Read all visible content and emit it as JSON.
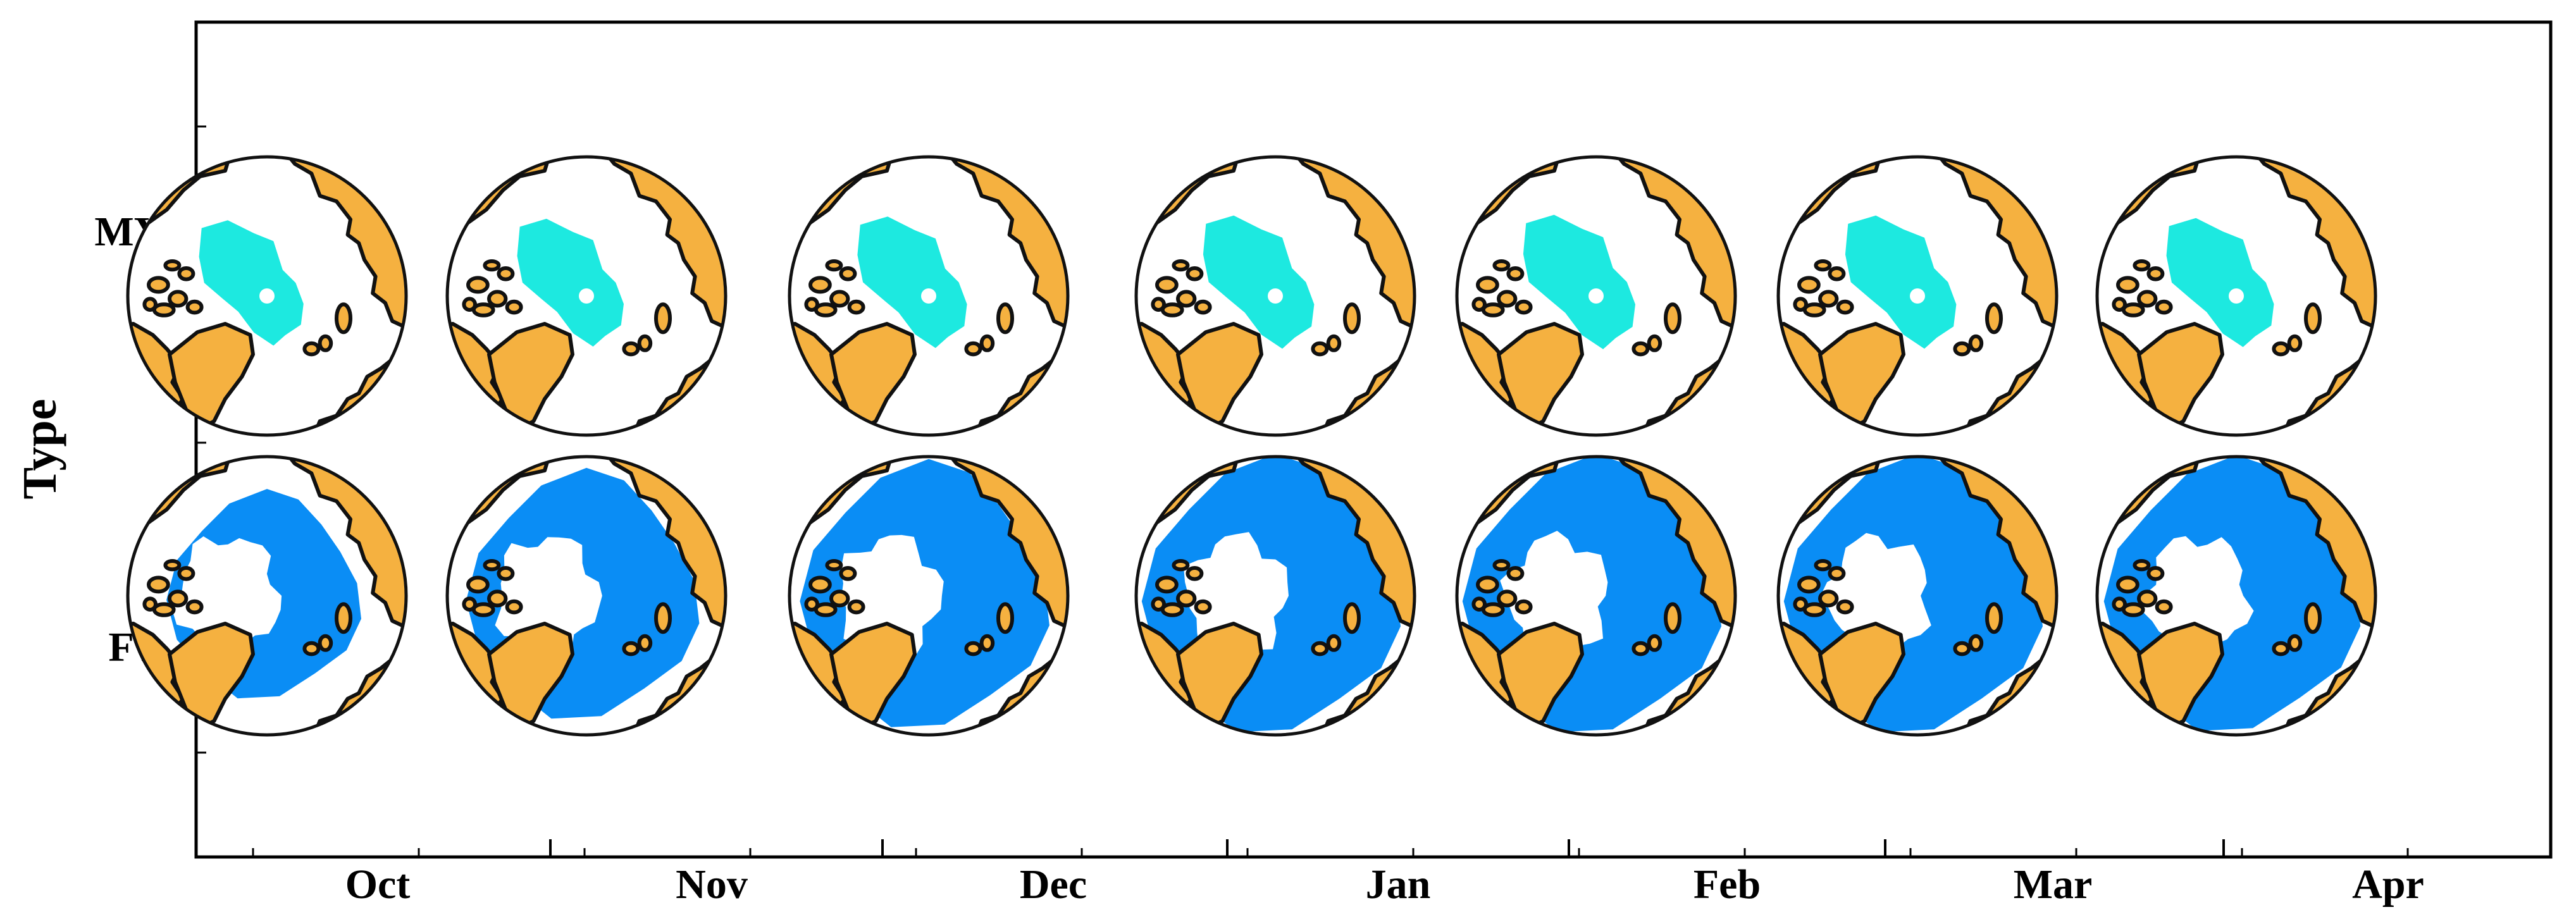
{
  "chart_data": {
    "type": "map-grid",
    "ylabel": "Type",
    "rows": [
      "MYI",
      "FYI"
    ],
    "columns": [
      "Oct",
      "Nov",
      "Dec",
      "Jan",
      "Feb",
      "Mar",
      "Apr"
    ],
    "colors": {
      "land": "#F5B140",
      "ocean": "#FFFFFF",
      "MYI": "#1DE9E0",
      "FYI": "#0A8DF5",
      "coastline": "#111111"
    },
    "ice_extent": {
      "MYI": [
        0.42,
        0.46,
        0.52,
        0.55,
        0.57,
        0.55,
        0.48
      ],
      "FYI": [
        0.45,
        0.78,
        0.92,
        1.0,
        1.0,
        1.0,
        0.98
      ]
    }
  }
}
